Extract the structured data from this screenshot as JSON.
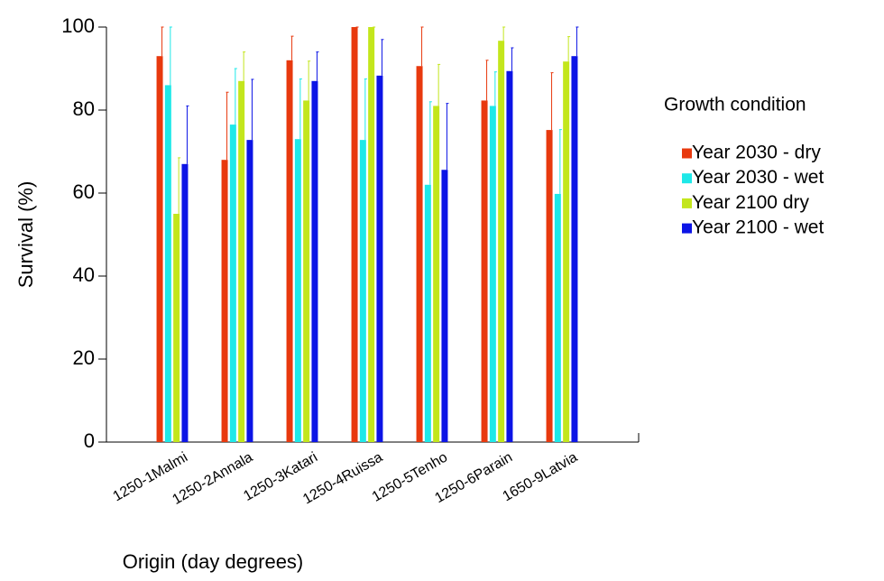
{
  "chart_data": {
    "type": "bar",
    "x_label": "Origin (day degrees)",
    "y_label": "Survival (%)",
    "legend_title": "Growth condition",
    "categories": [
      "1250-1Malmi",
      "1250-2Annala",
      "1250-3Katari",
      "1250-4Ruissa",
      "1250-5Tenho",
      "1250-6Parain",
      "1650-9Latvia"
    ],
    "series": [
      {
        "name": "Year 2030 - dry",
        "color": "#e8390e",
        "values": [
          93,
          68,
          92,
          100,
          90.6,
          82.3,
          75.2
        ],
        "errors": [
          7,
          16.3,
          5.8,
          0,
          9.4,
          9.7,
          13.8
        ]
      },
      {
        "name": "Year 2030 - wet",
        "color": "#1ee8e8",
        "values": [
          86,
          76.5,
          73,
          72.8,
          62,
          81,
          59.8
        ],
        "errors": [
          14,
          13.5,
          14.5,
          14.7,
          20,
          8.2,
          15.5
        ]
      },
      {
        "name": "Year 2100 dry",
        "color": "#c3e61c",
        "values": [
          55,
          87,
          82.3,
          100,
          81,
          96.7,
          91.7
        ],
        "errors": [
          13.5,
          7,
          9.5,
          0,
          10,
          3.3,
          6
        ]
      },
      {
        "name": "Year 2100 - wet",
        "color": "#0c14e6",
        "values": [
          67,
          72.8,
          87,
          88.3,
          65.6,
          89.4,
          93
        ],
        "errors": [
          14,
          14.6,
          7,
          8.7,
          16,
          5.6,
          7
        ]
      }
    ],
    "ylim": [
      0,
      100
    ],
    "yticks": [
      0,
      20,
      40,
      60,
      80,
      100
    ]
  }
}
